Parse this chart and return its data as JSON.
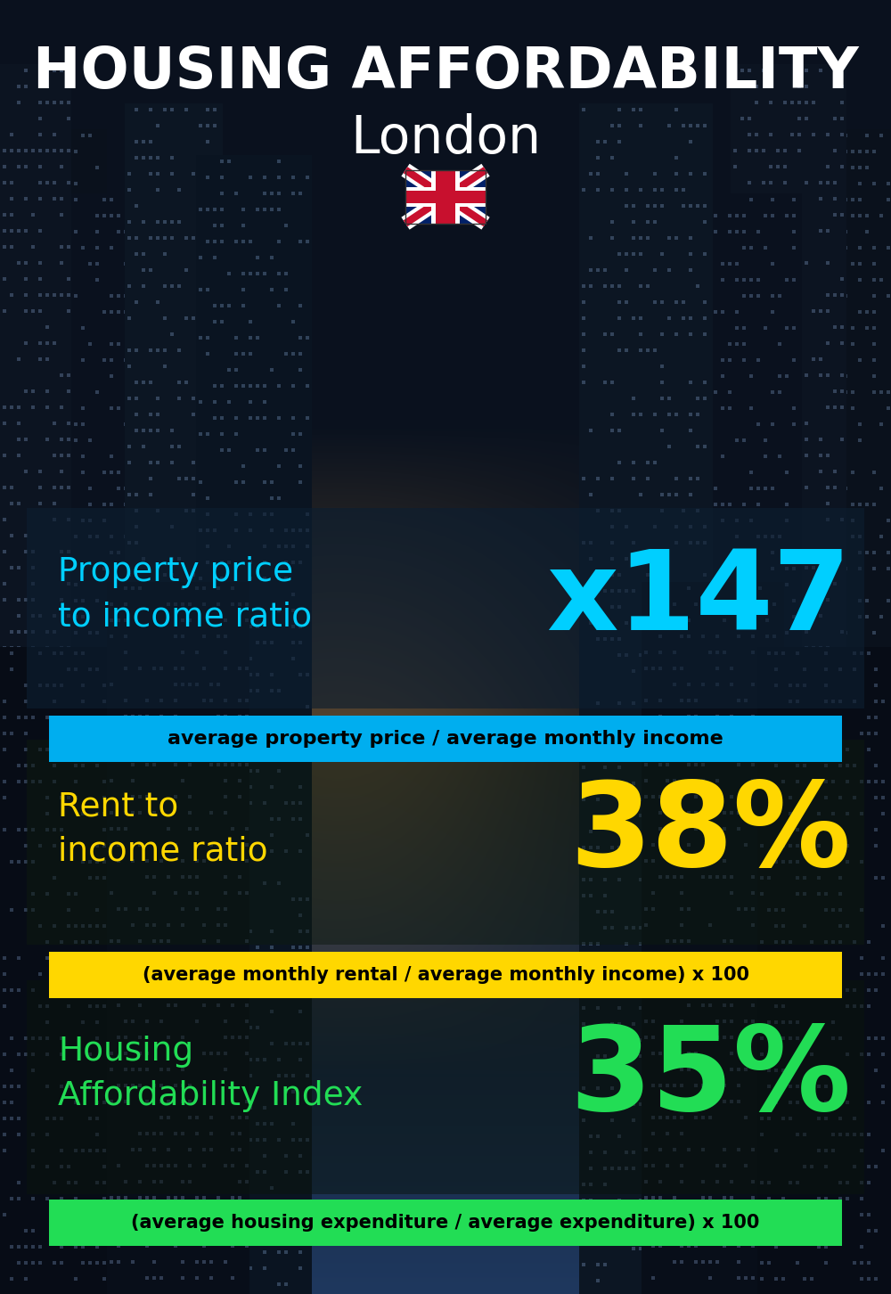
{
  "title_line1": "HOUSING AFFORDABILITY",
  "title_line2": "London",
  "section1_label": "Property price\nto income ratio",
  "section1_value": "x147",
  "section1_sublabel": "average property price / average monthly income",
  "section1_label_color": "#00cfff",
  "section1_value_color": "#00cfff",
  "section1_bg_color": "#00aeef",
  "section2_label": "Rent to\nincome ratio",
  "section2_value": "38%",
  "section2_sublabel": "(average monthly rental / average monthly income) x 100",
  "section2_label_color": "#FFD700",
  "section2_value_color": "#FFD700",
  "section2_bg_color": "#FFD700",
  "section3_label": "Housing\nAffordability Index",
  "section3_value": "35%",
  "section3_sublabel": "(average housing expenditure / average expenditure) x 100",
  "section3_label_color": "#22dd55",
  "section3_value_color": "#22dd55",
  "section3_bg_color": "#22dd55",
  "title_color": "#ffffff",
  "subtitle_color": "#ffffff",
  "sublabel_text_color": "#000000",
  "bg_dark": "#060d14",
  "building_dark": "#080f18",
  "building_mid": "#0d1822",
  "sky_top": "#0a1520",
  "sky_mid": "#1a3550",
  "sky_bottom": "#2a5070"
}
